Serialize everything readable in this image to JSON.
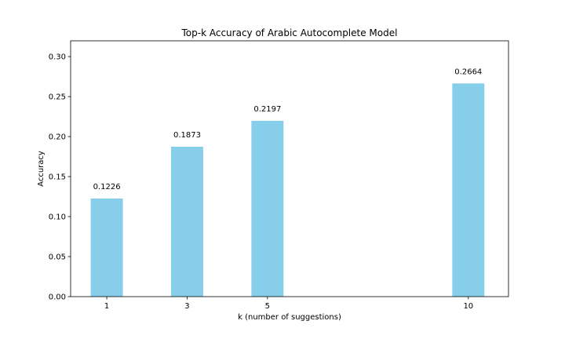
{
  "chart_data": {
    "type": "bar",
    "title": "Top-k Accuracy of Arabic Autocomplete Model",
    "xlabel": "k (number of suggestions)",
    "ylabel": "Accuracy",
    "x": [
      1,
      3,
      5,
      10
    ],
    "categories": [
      "1",
      "3",
      "5",
      "10"
    ],
    "values": [
      0.1226,
      0.1873,
      0.2197,
      0.2664
    ],
    "data_labels": [
      "0.1226",
      "0.1873",
      "0.2197",
      "0.2664"
    ],
    "xlim": [
      0.1,
      11.0
    ],
    "ylim": [
      0,
      0.3197
    ],
    "yticks": [
      0.0,
      0.05,
      0.1,
      0.15,
      0.2,
      0.25,
      0.3
    ],
    "ytick_labels": [
      "0.00",
      "0.05",
      "0.10",
      "0.15",
      "0.20",
      "0.25",
      "0.30"
    ],
    "bar_color": "#87ceeb",
    "grid": false,
    "legend": "none"
  }
}
